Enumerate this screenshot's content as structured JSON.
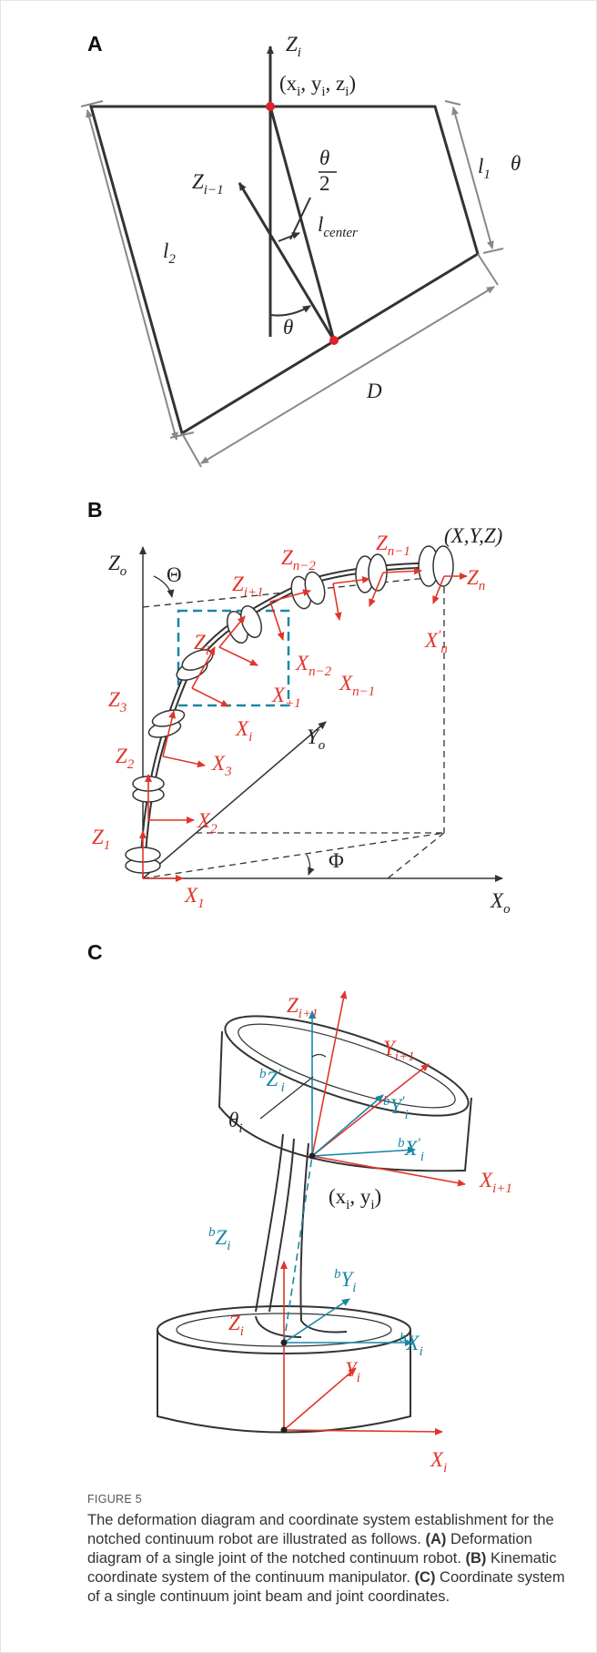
{
  "panel_a": {
    "letter": "A",
    "labels": {
      "zi": [
        {
          "t": "Z"
        },
        {
          "sub": "i"
        }
      ],
      "xyz": [
        {
          "t": "("
        },
        {
          "t": "x"
        },
        {
          "sub": "i"
        },
        {
          "t": ", "
        },
        {
          "t": "y"
        },
        {
          "sub": "i"
        },
        {
          "t": ", "
        },
        {
          "t": "z"
        },
        {
          "sub": "i"
        },
        {
          "t": ")"
        }
      ],
      "half_num": [
        {
          "t": "θ"
        }
      ],
      "half_den": [
        {
          "t": "2"
        }
      ],
      "l1": [
        {
          "t": "l"
        },
        {
          "sub": "1"
        }
      ],
      "theta_r": [
        {
          "t": "θ"
        }
      ],
      "zim1": [
        {
          "t": "Z"
        },
        {
          "sub": "i−1"
        }
      ],
      "lcenter": [
        {
          "t": "l"
        },
        {
          "sub": "center"
        }
      ],
      "l2": [
        {
          "t": "l"
        },
        {
          "sub": "2"
        }
      ],
      "theta_b": [
        {
          "t": "θ"
        }
      ],
      "d": [
        {
          "t": "D"
        }
      ]
    }
  },
  "panel_b": {
    "letter": "B",
    "labels": {
      "zo": [
        {
          "t": "Z"
        },
        {
          "sub": "o"
        }
      ],
      "Theta": [
        {
          "t": "Θ"
        }
      ],
      "xyz": [
        {
          "t": "(X,Y,Z)"
        }
      ],
      "zn1": [
        {
          "t": "Z"
        },
        {
          "sub": "n−1"
        }
      ],
      "zn2": [
        {
          "t": "Z"
        },
        {
          "sub": "n−2"
        }
      ],
      "zip1": [
        {
          "t": "Z"
        },
        {
          "sub": "i+1"
        }
      ],
      "zn": [
        {
          "t": "Z"
        },
        {
          "sub": "n"
        }
      ],
      "zi": [
        {
          "t": "Z"
        },
        {
          "sub": "i"
        }
      ],
      "xn2": [
        {
          "t": "X"
        },
        {
          "sub": "n−2"
        }
      ],
      "xn1": [
        {
          "t": "X"
        },
        {
          "sub": "n−1"
        }
      ],
      "xpn": [
        {
          "t": "X"
        },
        {
          "sup": "′"
        },
        {
          "sub": "n"
        }
      ],
      "xip1": [
        {
          "t": "X"
        },
        {
          "sub": "+1"
        }
      ],
      "xi": [
        {
          "t": "X"
        },
        {
          "sub": "i"
        }
      ],
      "z3": [
        {
          "t": "Z"
        },
        {
          "sub": "3"
        }
      ],
      "x3": [
        {
          "t": "X"
        },
        {
          "sub": "3"
        }
      ],
      "yo": [
        {
          "t": "Y"
        },
        {
          "sub": "o"
        }
      ],
      "z2": [
        {
          "t": "Z"
        },
        {
          "sub": "2"
        }
      ],
      "x2": [
        {
          "t": "X"
        },
        {
          "sub": "2"
        }
      ],
      "z1": [
        {
          "t": "Z"
        },
        {
          "sub": "1"
        }
      ],
      "phi": [
        {
          "t": "Φ"
        }
      ],
      "x1": [
        {
          "t": "X"
        },
        {
          "sub": "1"
        }
      ],
      "xo": [
        {
          "t": "X"
        },
        {
          "sub": "o"
        }
      ]
    }
  },
  "panel_c": {
    "letter": "C",
    "labels": {
      "zip1": [
        {
          "t": "Z"
        },
        {
          "sub": "i+1"
        }
      ],
      "yip1": [
        {
          "t": "Y"
        },
        {
          "sub": "i+1"
        }
      ],
      "bzpi": [
        {
          "sup": "b"
        },
        {
          "t": "Z"
        },
        {
          "sup": "′"
        },
        {
          "sub": "i"
        }
      ],
      "bypi": [
        {
          "sup": "b"
        },
        {
          "t": "Y"
        },
        {
          "sup": "′"
        },
        {
          "sub": "i"
        }
      ],
      "thetai": [
        {
          "t": "θ"
        },
        {
          "sub": "i"
        }
      ],
      "bxpi": [
        {
          "sup": "b"
        },
        {
          "t": "X"
        },
        {
          "sup": "′"
        },
        {
          "sub": "i"
        }
      ],
      "xip1": [
        {
          "t": "X"
        },
        {
          "sub": "i+1"
        }
      ],
      "xy": [
        {
          "t": "("
        },
        {
          "t": "x"
        },
        {
          "sub": "i"
        },
        {
          "t": ", "
        },
        {
          "t": "y"
        },
        {
          "sub": "i"
        },
        {
          "t": ")"
        }
      ],
      "bzi": [
        {
          "sup": "b"
        },
        {
          "t": "Z"
        },
        {
          "sub": "i"
        }
      ],
      "byi": [
        {
          "sup": "b"
        },
        {
          "t": "Y"
        },
        {
          "sub": "i"
        }
      ],
      "zi": [
        {
          "t": "Z"
        },
        {
          "sub": "i"
        }
      ],
      "bxi": [
        {
          "sup": "b"
        },
        {
          "t": "X"
        },
        {
          "sub": "i"
        }
      ],
      "yi": [
        {
          "t": "Y"
        },
        {
          "sub": "i"
        }
      ],
      "xi": [
        {
          "t": "X"
        },
        {
          "sub": "i"
        }
      ]
    }
  },
  "caption": {
    "label": "FIGURE 5",
    "parts": [
      "The deformation diagram and coordinate system establishment for the notched continuum robot are illustrated as follows. ",
      "(A)",
      " Deformation diagram of a single joint of the notched continuum robot. ",
      "(B)",
      " Kinematic coordinate system of the continuum manipulator. ",
      "(C)",
      " Coordinate system of a single continuum joint beam and joint coordinates."
    ]
  }
}
